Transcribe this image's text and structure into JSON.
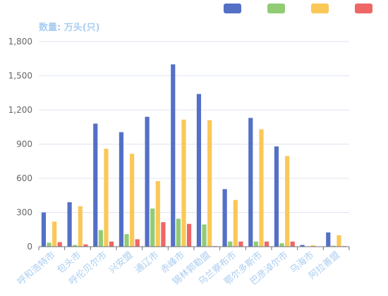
{
  "chart_data": {
    "type": "bar",
    "unit_label": "数量: 万头(只)",
    "categories": [
      "呼和浩特市",
      "包头市",
      "呼伦贝尔市",
      "兴安盟",
      "通辽市",
      "赤峰市",
      "锡林郭勒盟",
      "乌兰察布市",
      "鄂尔多斯市",
      "巴彦淖尔市",
      "乌海市",
      "阿拉善盟"
    ],
    "series": [
      {
        "color": "#5470c6",
        "values": [
          300,
          390,
          1080,
          1005,
          1140,
          1600,
          1340,
          505,
          1130,
          880,
          15,
          125
        ]
      },
      {
        "color": "#91cc75",
        "values": [
          35,
          15,
          145,
          110,
          335,
          245,
          195,
          45,
          45,
          30,
          3,
          8
        ]
      },
      {
        "color": "#fac858",
        "values": [
          220,
          355,
          860,
          815,
          575,
          1115,
          1110,
          410,
          1030,
          795,
          12,
          100
        ]
      },
      {
        "color": "#ee6666",
        "values": [
          40,
          20,
          45,
          65,
          215,
          200,
          5,
          45,
          45,
          45,
          3,
          5
        ]
      }
    ],
    "ylim": [
      0,
      1800
    ],
    "yticks": [
      "0",
      "300",
      "600",
      "900",
      "1,200",
      "1,500",
      "1,800"
    ],
    "grid": "horizontal",
    "legend_position": "top-right"
  }
}
